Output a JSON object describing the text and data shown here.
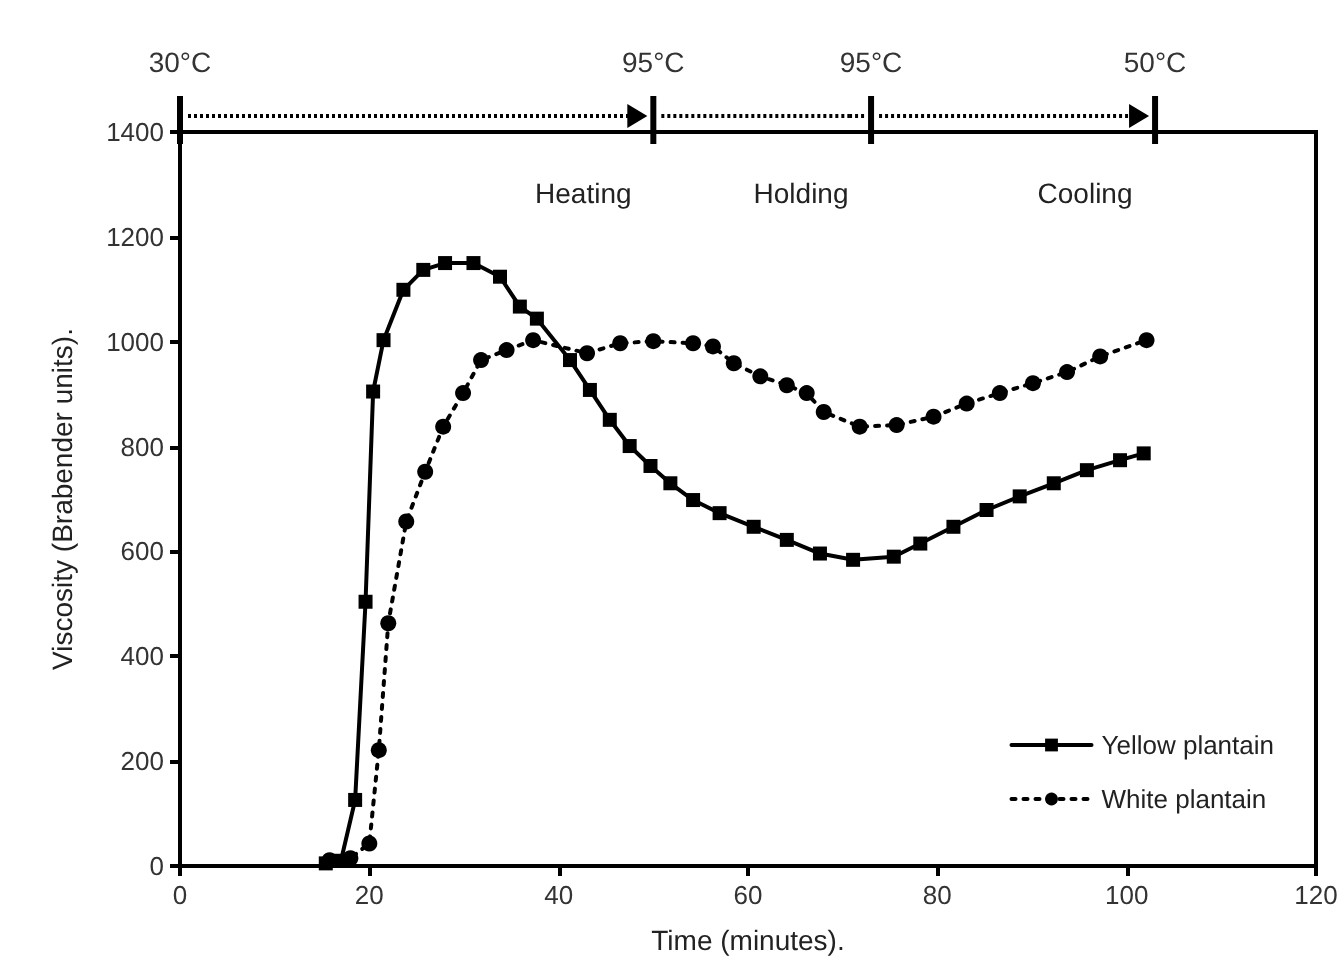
{
  "chart_data": {
    "type": "line",
    "xlabel": "Time (minutes).",
    "ylabel": "Viscosity (Brabender units).",
    "xlim": [
      0,
      120
    ],
    "xticks": [
      0,
      20,
      40,
      60,
      80,
      100,
      120
    ],
    "ylim": [
      0,
      1400
    ],
    "yticks": [
      0,
      200,
      400,
      600,
      800,
      1000,
      1200,
      1400
    ],
    "grid": false,
    "legend": "bottom right",
    "series": [
      {
        "name": "Yellow plantain",
        "color": "#000000",
        "marker": "square",
        "line_style": "solid",
        "x": [
          15.4,
          17,
          18.5,
          19.6,
          20.4,
          21.5,
          23.6,
          25.7,
          28,
          31,
          33.8,
          35.9,
          37.7,
          41.2,
          43.3,
          45.4,
          47.5,
          49.7,
          51.8,
          54.2,
          57,
          60.6,
          64.1,
          67.6,
          71.1,
          75.4,
          78.2,
          81.7,
          85.2,
          88.7,
          92.3,
          95.8,
          99.3,
          101.8
        ],
        "values": [
          5,
          10,
          126,
          504,
          905,
          1003,
          1099,
          1137,
          1150,
          1150,
          1124,
          1067,
          1044,
          965,
          908,
          851,
          801,
          763,
          730,
          698,
          673,
          647,
          622,
          596,
          584,
          590,
          615,
          647,
          679,
          705,
          730,
          755,
          774,
          787
        ]
      },
      {
        "name": "White plantain",
        "color": "#000000",
        "marker": "circle",
        "line_style": "dotted",
        "x": [
          15.8,
          18,
          20,
          21,
          22,
          23.9,
          25.9,
          27.8,
          29.9,
          31.8,
          34.5,
          37.3,
          43,
          46.5,
          50,
          54.2,
          56.3,
          58.5,
          61.3,
          64.1,
          66.2,
          68,
          71.8,
          75.7,
          79.6,
          83.1,
          86.6,
          90.1,
          93.7,
          97.2,
          102.1
        ],
        "values": [
          11,
          15,
          43,
          221,
          463,
          657,
          752,
          838,
          902,
          965,
          984,
          1003,
          978,
          997,
          1001,
          997,
          991,
          959,
          934,
          917,
          902,
          866,
          838,
          841,
          857,
          882,
          902,
          921,
          942,
          972,
          1003
        ]
      }
    ],
    "ref_lines": [
      {
        "axis": "x",
        "value": 0,
        "label": "30°C"
      },
      {
        "axis": "x",
        "value": 50,
        "label": "95°C"
      },
      {
        "axis": "x",
        "value": 73,
        "label": "95°C"
      },
      {
        "axis": "x",
        "value": 103,
        "label": "50°C"
      }
    ],
    "annotations": [
      "Heating",
      "Holding",
      "Cooling"
    ]
  }
}
